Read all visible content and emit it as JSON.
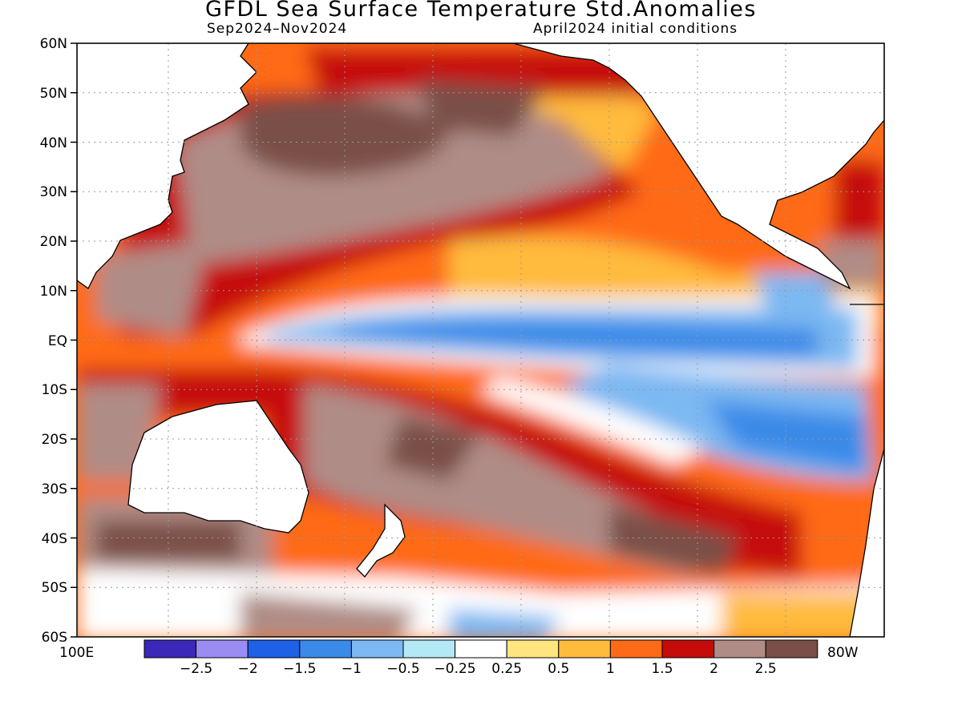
{
  "title": "GFDL Sea Surface Temperature Std.Anomalies",
  "subtitle_left": "Sep2024–Nov2024",
  "subtitle_right": "April2024 initial conditions",
  "lat_labels": [
    "60N",
    "50N",
    "40N",
    "30N",
    "20N",
    "10N",
    "EQ",
    "10S",
    "20S",
    "30S",
    "40S",
    "50S",
    "60S"
  ],
  "lon_left_label": "100E",
  "lon_right_label": "80W",
  "colorbar": {
    "colors": [
      "#3b27b8",
      "#9b8cf4",
      "#1e61e6",
      "#3a8ae8",
      "#7cb8f2",
      "#b4e8f5",
      "#ffffff",
      "#ffe57f",
      "#ffbb3c",
      "#ff6a16",
      "#c60b0b",
      "#b08c86",
      "#7a4f47"
    ],
    "ticks": [
      "−2.5",
      "−2",
      "−1.5",
      "−1",
      "−0.5",
      "−0.25",
      "0.25",
      "0.5",
      "1",
      "1.5",
      "2",
      "2.5"
    ]
  }
}
